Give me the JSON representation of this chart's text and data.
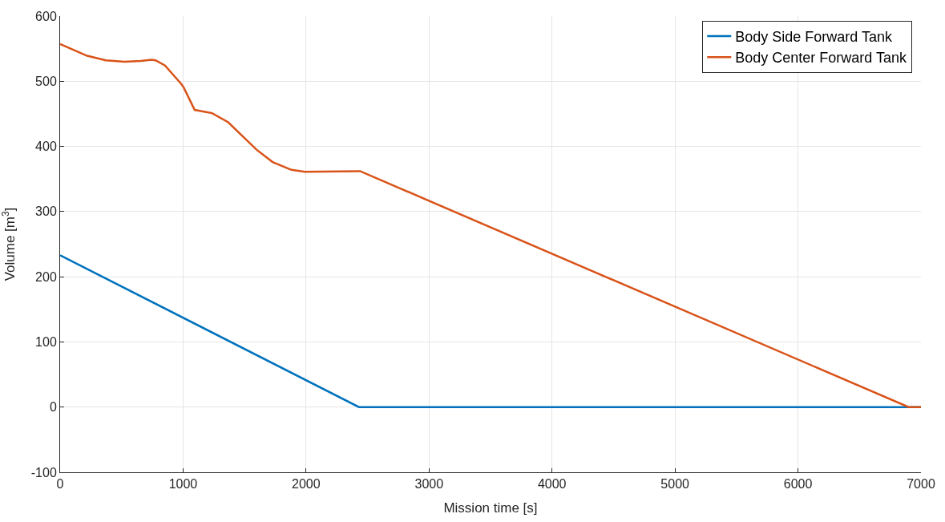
{
  "chart_data": {
    "type": "line",
    "xlabel": "Mission time [s]",
    "ylabel": "Volume [m$^{3}$]",
    "series": [
      {
        "name": "Body Side Forward Tank",
        "color": "#0072bd",
        "x": [
          0,
          2430,
          7000
        ],
        "values": [
          233,
          0,
          0
        ]
      },
      {
        "name": "Body Center Forward Tank",
        "color": "#d95319",
        "x": [
          0,
          219,
          372,
          525,
          656,
          744,
          776,
          853,
          984,
          1006,
          1094,
          1236,
          1367,
          1597,
          1728,
          1881,
          1990,
          2439,
          6900,
          7000
        ],
        "values": [
          557,
          539,
          532,
          530,
          531,
          533,
          532,
          524,
          496,
          490,
          456,
          451,
          437,
          395,
          376,
          364,
          361,
          362,
          0,
          0
        ]
      }
    ],
    "xlim": [
      0,
      7000
    ],
    "xticks": [
      0,
      1000,
      2000,
      3000,
      4000,
      5000,
      6000,
      7000
    ],
    "ylim": [
      -100,
      600
    ],
    "yticks": [
      -100,
      0,
      100,
      200,
      300,
      400,
      500,
      600
    ],
    "grid": true,
    "legend": "top right",
    "marker": "none",
    "line_style": "solid"
  }
}
